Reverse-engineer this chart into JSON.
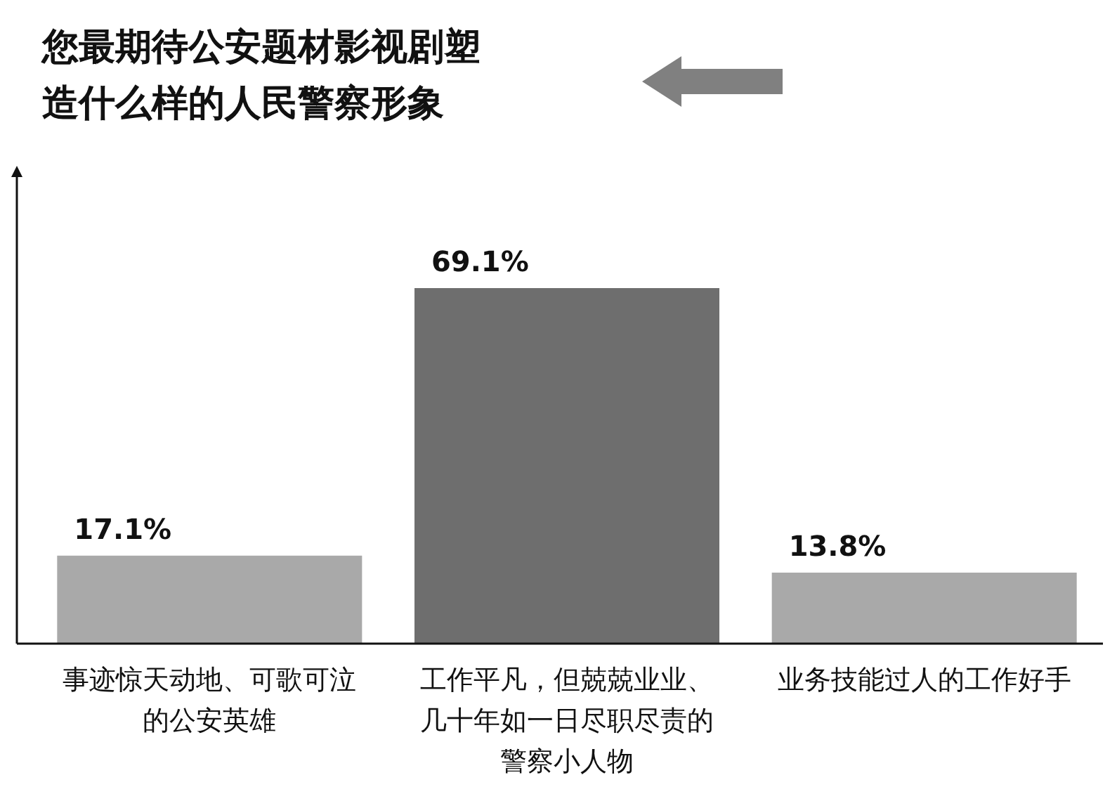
{
  "chart_data": {
    "type": "bar",
    "title": "您最期待公安题材影视剧塑造什么样的人民警察形象",
    "categories": [
      "事迹惊天动地、可歌可泣的公安英雄",
      "工作平凡，但兢兢业业、几十年如一日尽职尽责的警察小人物",
      "业务技能过人的工作好手"
    ],
    "values": [
      17.1,
      69.1,
      13.8
    ],
    "colors": [
      "#a9a9a9",
      "#6e6e6e",
      "#a9a9a9"
    ],
    "value_labels": [
      "17.1%",
      "69.1%",
      "13.8%"
    ]
  }
}
